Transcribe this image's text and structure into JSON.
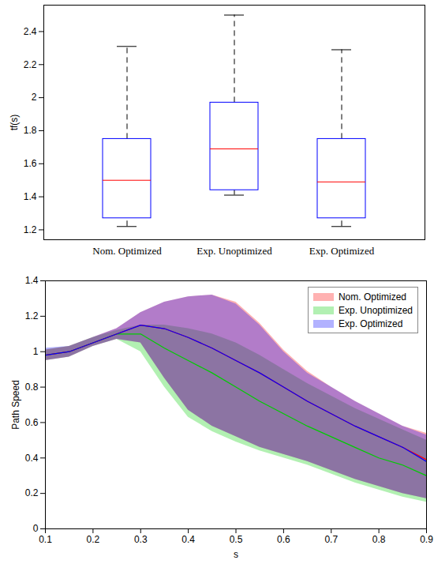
{
  "chart_data": [
    {
      "type": "box",
      "categories": [
        "Nom. Optimized",
        "Exp. Unoptimized",
        "Exp. Optimized"
      ],
      "boxes": [
        {
          "min": 1.22,
          "q1": 1.27,
          "median": 1.5,
          "q3": 1.75,
          "max": 2.31
        },
        {
          "min": 1.41,
          "q1": 1.44,
          "median": 1.69,
          "q3": 1.97,
          "max": 2.5
        },
        {
          "min": 1.22,
          "q1": 1.27,
          "median": 1.49,
          "q3": 1.75,
          "max": 2.29
        }
      ],
      "color": "#0000ff",
      "y_label": "tf(s)",
      "ylim": [
        1.14,
        2.56
      ],
      "yticks": [
        1.2,
        1.4,
        1.6,
        1.8,
        2,
        2.2,
        2.4
      ]
    },
    {
      "type": "area",
      "x_label": "s",
      "y_label": "Path Speed",
      "x": [
        0.1,
        0.15,
        0.2,
        0.25,
        0.3,
        0.35,
        0.4,
        0.45,
        0.5,
        0.55,
        0.6,
        0.65,
        0.7,
        0.75,
        0.8,
        0.85,
        0.9
      ],
      "series": [
        {
          "name": "Nom. Optimized",
          "color": "#ff0000",
          "upper": [
            1.01,
            1.03,
            1.08,
            1.13,
            1.22,
            1.28,
            1.31,
            1.32,
            1.28,
            1.16,
            1.01,
            0.89,
            0.8,
            0.72,
            0.65,
            0.58,
            0.54
          ],
          "lower": [
            0.95,
            0.97,
            1.03,
            1.07,
            1.05,
            0.85,
            0.67,
            0.58,
            0.52,
            0.46,
            0.42,
            0.38,
            0.33,
            0.28,
            0.24,
            0.2,
            0.17
          ],
          "mean": [
            0.98,
            1.0,
            1.05,
            1.1,
            1.15,
            1.13,
            1.08,
            1.02,
            0.95,
            0.88,
            0.8,
            0.72,
            0.65,
            0.58,
            0.52,
            0.46,
            0.39
          ]
        },
        {
          "name": "Exp. Unoptimized",
          "color": "#00cc00",
          "upper": [
            1.01,
            1.03,
            1.08,
            1.12,
            1.15,
            1.15,
            1.13,
            1.1,
            1.05,
            0.98,
            0.9,
            0.82,
            0.75,
            0.68,
            0.62,
            0.56,
            0.5
          ],
          "lower": [
            0.95,
            0.97,
            1.03,
            1.07,
            1.0,
            0.8,
            0.63,
            0.55,
            0.49,
            0.44,
            0.4,
            0.36,
            0.31,
            0.26,
            0.22,
            0.18,
            0.15
          ],
          "mean": [
            0.98,
            1.0,
            1.05,
            1.1,
            1.1,
            1.02,
            0.95,
            0.88,
            0.8,
            0.72,
            0.65,
            0.58,
            0.52,
            0.46,
            0.4,
            0.36,
            0.3
          ]
        },
        {
          "name": "Exp. Optimized",
          "color": "#0000ff",
          "upper": [
            1.02,
            1.03,
            1.08,
            1.13,
            1.22,
            1.28,
            1.31,
            1.32,
            1.27,
            1.15,
            1.0,
            0.88,
            0.8,
            0.72,
            0.65,
            0.58,
            0.53
          ],
          "lower": [
            0.95,
            0.97,
            1.03,
            1.07,
            1.05,
            0.85,
            0.67,
            0.58,
            0.52,
            0.46,
            0.42,
            0.38,
            0.33,
            0.28,
            0.24,
            0.2,
            0.17
          ],
          "mean": [
            0.98,
            1.0,
            1.05,
            1.1,
            1.15,
            1.13,
            1.08,
            1.02,
            0.95,
            0.88,
            0.8,
            0.72,
            0.65,
            0.58,
            0.52,
            0.46,
            0.38
          ]
        }
      ],
      "legend": "top-right",
      "xlim": [
        0.1,
        0.9
      ],
      "xticks": [
        0.1,
        0.2,
        0.3,
        0.4,
        0.5,
        0.6,
        0.7,
        0.8,
        0.9
      ],
      "ylim": [
        0,
        1.4
      ],
      "yticks": [
        0,
        0.2,
        0.4,
        0.6,
        0.8,
        1,
        1.2,
        1.4
      ]
    }
  ]
}
